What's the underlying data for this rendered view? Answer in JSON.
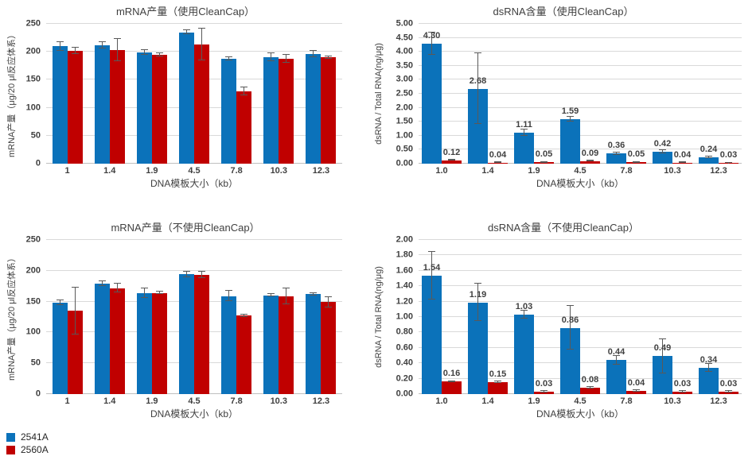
{
  "colors": {
    "series_2541A": "#0b72ba",
    "series_2560A": "#c00000",
    "error_bar": "#595959",
    "gridline": "#d9d9d9",
    "axis_text": "#404040"
  },
  "legend": {
    "items": [
      {
        "label": "2541A",
        "color": "#0b72ba"
      },
      {
        "label": "2560A",
        "color": "#c00000"
      }
    ]
  },
  "chart_data": [
    {
      "id": "mrna-yield-cleancap",
      "type": "bar",
      "title": "mRNA产量（使用CleanCap）",
      "xlabel": "DNA模板大小（kb）",
      "ylabel": "mRNA产量（μg/20 μl反应体系）",
      "categories": [
        "1",
        "1.4",
        "1.9",
        "4.5",
        "7.8",
        "10.3",
        "12.3"
      ],
      "ylim": [
        0,
        250
      ],
      "ytick_step": 50,
      "ytick_decimals": 0,
      "grid": true,
      "show_value_labels": false,
      "series": [
        {
          "name": "2541A",
          "color": "#0b72ba",
          "values": [
            210,
            212,
            199,
            235,
            187,
            190,
            196
          ],
          "errors": [
            8,
            6,
            4,
            4,
            3,
            7,
            6
          ]
        },
        {
          "name": "2560A",
          "color": "#c00000",
          "values": [
            202,
            203,
            195,
            213,
            129,
            187,
            190
          ],
          "errors": [
            6,
            20,
            3,
            29,
            7,
            7,
            2
          ]
        }
      ]
    },
    {
      "id": "dsrna-content-cleancap",
      "type": "bar",
      "title": "dsRNA含量（使用CleanCap）",
      "xlabel": "DNA模板大小（kb）",
      "ylabel": "dsRNA / Total RNA(ng/μg)",
      "categories": [
        "1.0",
        "1.4",
        "1.9",
        "4.5",
        "7.8",
        "10.3",
        "12.3"
      ],
      "ylim": [
        0,
        5
      ],
      "ytick_step": 0.5,
      "ytick_decimals": 2,
      "grid": true,
      "show_value_labels": true,
      "series": [
        {
          "name": "2541A",
          "color": "#0b72ba",
          "values": [
            4.3,
            2.68,
            1.11,
            1.59,
            0.36,
            0.42,
            0.24
          ],
          "labels": [
            "4.30",
            "2.68",
            "1.11",
            "1.59",
            "0.36",
            "0.42",
            "0.24"
          ],
          "errors": [
            0.4,
            1.27,
            0.12,
            0.09,
            0.04,
            0.05,
            0.03
          ]
        },
        {
          "name": "2560A",
          "color": "#c00000",
          "values": [
            0.12,
            0.04,
            0.05,
            0.09,
            0.05,
            0.04,
            0.03
          ],
          "labels": [
            "0.12",
            "0.04",
            "0.05",
            "0.09",
            "0.05",
            "0.04",
            "0.03"
          ],
          "errors": [
            0.02,
            0.01,
            0.01,
            0.01,
            0.01,
            0.01,
            0.01
          ]
        }
      ]
    },
    {
      "id": "mrna-yield-no-cleancap",
      "type": "bar",
      "title": "mRNA产量（不使用CleanCap）",
      "xlabel": "DNA模板大小（kb）",
      "ylabel": "mRNA产量（μg/20 μl反应体系）",
      "categories": [
        "1",
        "1.4",
        "1.9",
        "4.5",
        "7.8",
        "10.3",
        "12.3"
      ],
      "ylim": [
        0,
        250
      ],
      "ytick_step": 50,
      "ytick_decimals": 0,
      "grid": true,
      "show_value_labels": false,
      "series": [
        {
          "name": "2541A",
          "color": "#0b72ba",
          "values": [
            148,
            179,
            164,
            194,
            159,
            160,
            162
          ],
          "errors": [
            4,
            4,
            8,
            5,
            8,
            2,
            2
          ]
        },
        {
          "name": "2560A",
          "color": "#c00000",
          "values": [
            135,
            172,
            164,
            193,
            127,
            158,
            149
          ],
          "errors": [
            38,
            7,
            2,
            5,
            2,
            13,
            8
          ]
        }
      ]
    },
    {
      "id": "dsrna-content-no-cleancap",
      "type": "bar",
      "title": "dsRNA含量（不使用CleanCap）",
      "xlabel": "DNA模板大小（kb）",
      "ylabel": "dsRNA / Total RNA(ng/μg)",
      "categories": [
        "1.0",
        "1.4",
        "1.9",
        "4.5",
        "7.8",
        "10.3",
        "12.3"
      ],
      "ylim": [
        0,
        2
      ],
      "ytick_step": 0.2,
      "ytick_decimals": 2,
      "grid": true,
      "show_value_labels": true,
      "series": [
        {
          "name": "2541A",
          "color": "#0b72ba",
          "values": [
            1.54,
            1.19,
            1.03,
            0.86,
            0.44,
            0.49,
            0.34
          ],
          "labels": [
            "1.54",
            "1.19",
            "1.03",
            "0.86",
            "0.44",
            "0.49",
            "0.34"
          ],
          "errors": [
            0.31,
            0.24,
            0.05,
            0.28,
            0.06,
            0.22,
            0.05
          ]
        },
        {
          "name": "2560A",
          "color": "#c00000",
          "values": [
            0.16,
            0.15,
            0.03,
            0.08,
            0.04,
            0.03,
            0.03
          ],
          "labels": [
            "0.16",
            "0.15",
            "0.03",
            "0.08",
            "0.04",
            "0.03",
            "0.03"
          ],
          "errors": [
            0.01,
            0.01,
            0.01,
            0.01,
            0.01,
            0.01,
            0.01
          ]
        }
      ]
    }
  ]
}
